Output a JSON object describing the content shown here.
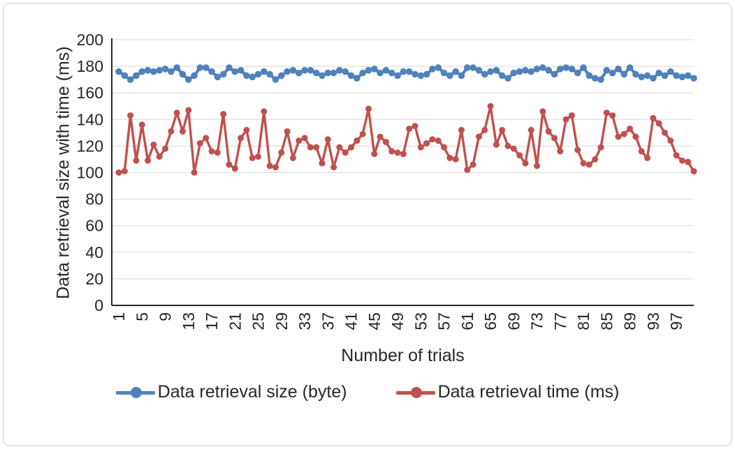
{
  "chart": {
    "y_axis_title": "Data retrieval size with time (ms)",
    "x_axis_title": "Number of trials"
  },
  "chart_data": {
    "type": "line",
    "x_range": [
      1,
      100
    ],
    "x_tick_labels": [
      1,
      5,
      9,
      13,
      17,
      21,
      25,
      29,
      33,
      37,
      41,
      45,
      49,
      53,
      57,
      61,
      65,
      69,
      73,
      77,
      81,
      85,
      89,
      93,
      97
    ],
    "ylim": [
      0,
      200
    ],
    "ytick_step": 20,
    "grid": true,
    "legend_position": "bottom",
    "xlabel": "Number of trials",
    "ylabel": "Data retrieval size with time (ms)",
    "series": [
      {
        "name": "Data retrieval size (byte)",
        "color": "#4F81BD",
        "values": [
          176,
          173,
          170,
          173,
          176,
          177,
          176,
          177,
          178,
          176,
          179,
          174,
          170,
          173,
          179,
          179,
          176,
          172,
          174,
          179,
          176,
          177,
          173,
          172,
          174,
          176,
          174,
          170,
          173,
          176,
          177,
          175,
          177,
          177,
          175,
          173,
          175,
          175,
          177,
          176,
          173,
          171,
          175,
          177,
          178,
          175,
          177,
          175,
          173,
          176,
          176,
          174,
          173,
          174,
          178,
          179,
          175,
          173,
          176,
          173,
          179,
          179,
          177,
          174,
          176,
          177,
          173,
          171,
          175,
          176,
          177,
          176,
          178,
          179,
          177,
          174,
          178,
          179,
          178,
          175,
          179,
          173,
          171,
          170,
          177,
          175,
          178,
          174,
          179,
          174,
          172,
          173,
          171,
          175,
          173,
          176,
          173,
          172,
          173,
          171
        ]
      },
      {
        "name": "Data retrieval time (ms)",
        "color": "#C0504D",
        "values": [
          100,
          101,
          143,
          109,
          136,
          109,
          121,
          112,
          118,
          131,
          145,
          131,
          147,
          100,
          122,
          126,
          116,
          115,
          144,
          106,
          103,
          126,
          132,
          111,
          112,
          146,
          105,
          104,
          115,
          131,
          111,
          124,
          126,
          119,
          119,
          107,
          125,
          104,
          119,
          115,
          119,
          124,
          129,
          148,
          114,
          127,
          123,
          116,
          115,
          114,
          133,
          135,
          119,
          122,
          125,
          124,
          119,
          111,
          110,
          132,
          102,
          106,
          127,
          132,
          150,
          121,
          132,
          120,
          118,
          113,
          107,
          132,
          105,
          146,
          131,
          126,
          116,
          140,
          143,
          117,
          107,
          106,
          110,
          119,
          145,
          143,
          127,
          129,
          133,
          127,
          116,
          111,
          141,
          137,
          130,
          124,
          113,
          109,
          108,
          101
        ]
      }
    ]
  }
}
